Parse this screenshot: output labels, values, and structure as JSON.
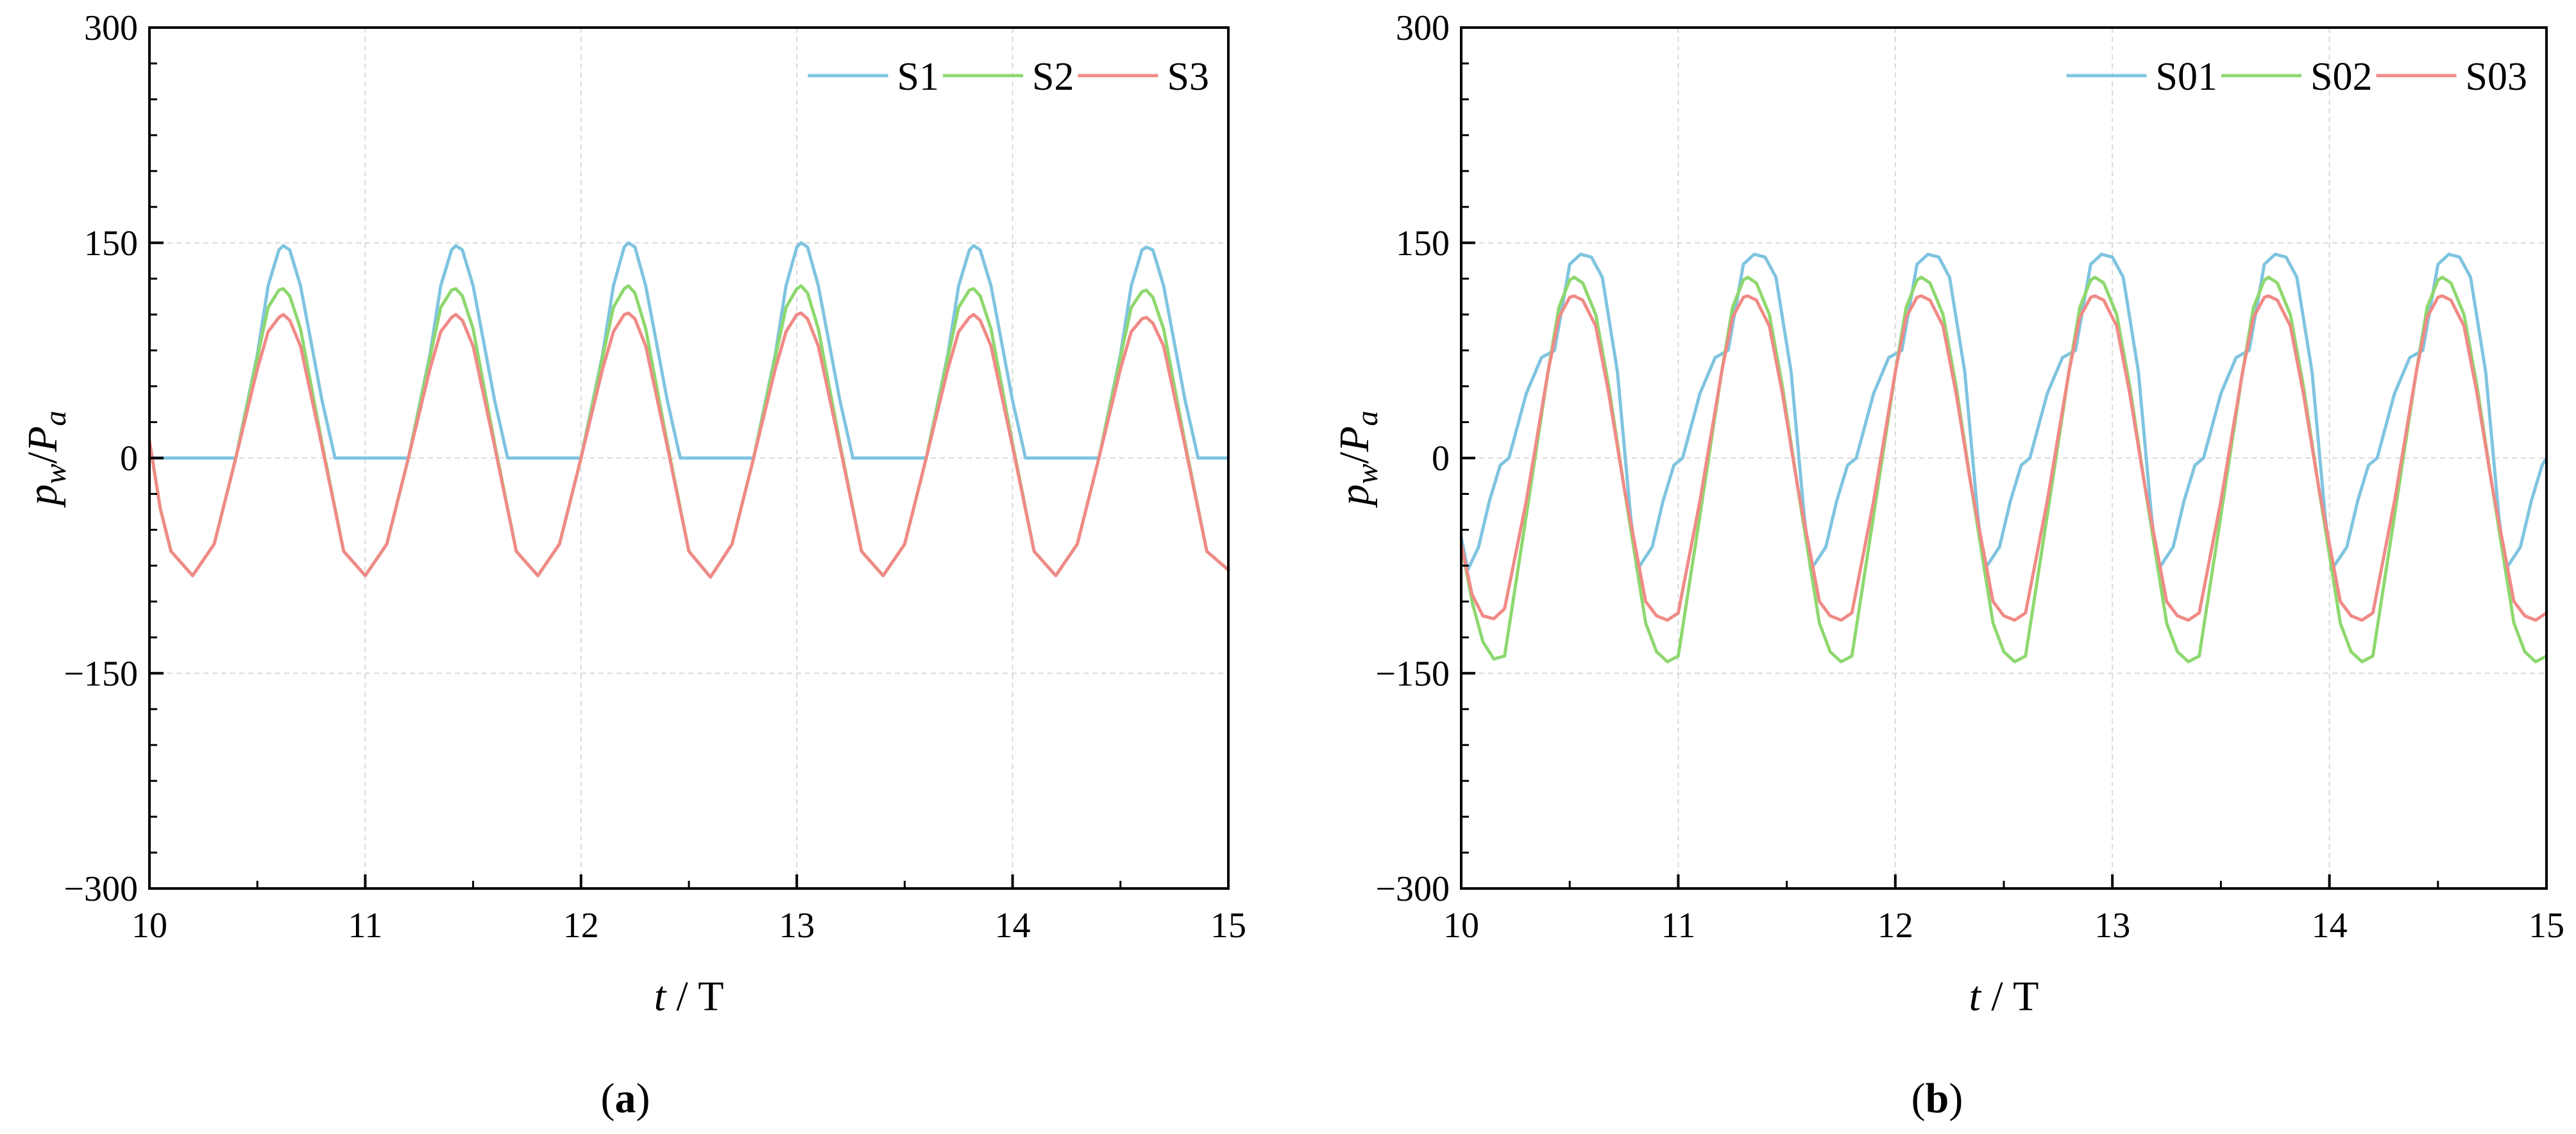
{
  "figure": {
    "panels": [
      "(a)",
      "(b)"
    ]
  },
  "chart_data": [
    {
      "type": "line",
      "panel_label": {
        "open": "(",
        "letter": "a",
        "close": ")"
      },
      "xlabel": {
        "var": "t",
        "sep": " / ",
        "unit": "T"
      },
      "ylabel": {
        "p": "p",
        "p_sub": "w",
        "slash": "/",
        "P": "P",
        "P_sub": "a"
      },
      "xlim": [
        10,
        15
      ],
      "ylim": [
        -300,
        300
      ],
      "xticks": [
        "10",
        "11",
        "12",
        "13",
        "14",
        "15"
      ],
      "yticks": [
        {
          "value": 300,
          "label": "300"
        },
        {
          "value": 150,
          "label": "150"
        },
        {
          "value": 0,
          "label": "0"
        },
        {
          "value": -150,
          "label": "−150"
        },
        {
          "value": -300,
          "label": "−300"
        }
      ],
      "grid": true,
      "legend_position": "top-right",
      "period": 0.8,
      "series": [
        {
          "name": "S1",
          "color": "#7fc4e0",
          "x": [
            10.0,
            10.1,
            10.2,
            10.3,
            10.4,
            10.5,
            10.55,
            10.6,
            10.62,
            10.65,
            10.7,
            10.8,
            10.86,
            10.95,
            11.0,
            11.1,
            11.2,
            11.3,
            11.35,
            11.4,
            11.42,
            11.45,
            11.5,
            11.6,
            11.66,
            11.75,
            11.8,
            11.9,
            12.0,
            12.1,
            12.15,
            12.2,
            12.22,
            12.25,
            12.3,
            12.4,
            12.46,
            12.55,
            12.6,
            12.7,
            12.8,
            12.9,
            12.95,
            13.0,
            13.02,
            13.05,
            13.1,
            13.2,
            13.26,
            13.35,
            13.4,
            13.5,
            13.6,
            13.7,
            13.75,
            13.8,
            13.82,
            13.85,
            13.9,
            14.0,
            14.06,
            14.15,
            14.2,
            14.3,
            14.4,
            14.5,
            14.55,
            14.6,
            14.62,
            14.65,
            14.7,
            14.8,
            14.86,
            14.95,
            15.0
          ],
          "y": [
            0,
            0,
            0,
            0,
            0,
            72,
            120,
            145,
            148,
            145,
            120,
            40,
            0,
            0,
            0,
            0,
            0,
            72,
            120,
            145,
            148,
            145,
            120,
            40,
            0,
            0,
            0,
            0,
            0,
            72,
            120,
            147,
            150,
            147,
            120,
            40,
            0,
            0,
            0,
            0,
            0,
            72,
            120,
            147,
            150,
            147,
            120,
            40,
            0,
            0,
            0,
            0,
            0,
            72,
            120,
            145,
            148,
            145,
            120,
            40,
            0,
            0,
            0,
            0,
            0,
            72,
            120,
            145,
            147,
            145,
            120,
            40,
            0,
            0,
            0
          ]
        },
        {
          "name": "S2",
          "color": "#8ed86f",
          "x": [
            10.0,
            10.05,
            10.1,
            10.2,
            10.3,
            10.4,
            10.5,
            10.55,
            10.6,
            10.62,
            10.65,
            10.7,
            10.8,
            10.9,
            11.0,
            11.1,
            11.2,
            11.3,
            11.35,
            11.4,
            11.42,
            11.45,
            11.5,
            11.6,
            11.7,
            11.8,
            11.9,
            12.0,
            12.1,
            12.15,
            12.2,
            12.22,
            12.25,
            12.3,
            12.4,
            12.5,
            12.6,
            12.7,
            12.8,
            12.9,
            12.95,
            13.0,
            13.02,
            13.05,
            13.1,
            13.2,
            13.3,
            13.4,
            13.5,
            13.6,
            13.7,
            13.75,
            13.8,
            13.82,
            13.85,
            13.9,
            14.0,
            14.1,
            14.2,
            14.3,
            14.4,
            14.5,
            14.55,
            14.6,
            14.62,
            14.65,
            14.7,
            14.8,
            14.9,
            15.0
          ],
          "y": [
            12,
            -35,
            -65,
            -82,
            -60,
            0,
            70,
            105,
            117,
            118,
            113,
            90,
            10,
            -65,
            -82,
            -60,
            0,
            70,
            105,
            117,
            118,
            113,
            90,
            10,
            -65,
            -82,
            -60,
            0,
            70,
            105,
            118,
            120,
            115,
            90,
            10,
            -65,
            -83,
            -60,
            0,
            70,
            105,
            118,
            120,
            115,
            90,
            10,
            -65,
            -82,
            -60,
            0,
            70,
            105,
            117,
            118,
            113,
            90,
            10,
            -65,
            -82,
            -60,
            0,
            70,
            105,
            116,
            117,
            112,
            90,
            10,
            -65,
            -78
          ]
        },
        {
          "name": "S3",
          "color": "#f08a86",
          "x": [
            10.0,
            10.05,
            10.1,
            10.2,
            10.3,
            10.4,
            10.5,
            10.55,
            10.6,
            10.62,
            10.65,
            10.7,
            10.8,
            10.9,
            11.0,
            11.1,
            11.2,
            11.3,
            11.35,
            11.4,
            11.42,
            11.45,
            11.5,
            11.6,
            11.7,
            11.8,
            11.9,
            12.0,
            12.1,
            12.15,
            12.2,
            12.22,
            12.25,
            12.3,
            12.4,
            12.5,
            12.6,
            12.7,
            12.8,
            12.9,
            12.95,
            13.0,
            13.02,
            13.05,
            13.1,
            13.2,
            13.3,
            13.4,
            13.5,
            13.6,
            13.7,
            13.75,
            13.8,
            13.82,
            13.85,
            13.9,
            14.0,
            14.1,
            14.2,
            14.3,
            14.4,
            14.5,
            14.55,
            14.6,
            14.62,
            14.65,
            14.7,
            14.8,
            14.9,
            15.0
          ],
          "y": [
            12,
            -35,
            -65,
            -82,
            -60,
            0,
            62,
            88,
            98,
            100,
            96,
            78,
            8,
            -65,
            -82,
            -60,
            0,
            62,
            88,
            98,
            100,
            96,
            78,
            8,
            -65,
            -82,
            -60,
            0,
            62,
            88,
            100,
            101,
            97,
            78,
            8,
            -65,
            -83,
            -60,
            0,
            62,
            88,
            100,
            101,
            97,
            78,
            8,
            -65,
            -82,
            -60,
            0,
            62,
            88,
            98,
            100,
            96,
            78,
            8,
            -65,
            -82,
            -60,
            0,
            62,
            88,
            97,
            98,
            94,
            78,
            8,
            -65,
            -78
          ]
        }
      ]
    },
    {
      "type": "line",
      "panel_label": {
        "open": "(",
        "letter": "b",
        "close": ")"
      },
      "xlabel": {
        "var": "t",
        "sep": " / ",
        "unit": "T"
      },
      "ylabel": {
        "p": "p",
        "p_sub": "w",
        "slash": "/",
        "P": "P",
        "P_sub": "a"
      },
      "xlim": [
        10,
        15
      ],
      "ylim": [
        -300,
        300
      ],
      "xticks": [
        "10",
        "11",
        "12",
        "13",
        "14",
        "15"
      ],
      "yticks": [
        {
          "value": 300,
          "label": "300"
        },
        {
          "value": 150,
          "label": "150"
        },
        {
          "value": 0,
          "label": "0"
        },
        {
          "value": -150,
          "label": "−150"
        },
        {
          "value": -300,
          "label": "−300"
        }
      ],
      "grid": true,
      "legend_position": "top-right",
      "period": 0.8,
      "series": [
        {
          "name": "S01",
          "color": "#7fc4e0",
          "x": [
            10.0,
            10.03,
            10.08,
            10.13,
            10.18,
            10.22,
            10.3,
            10.37,
            10.43,
            10.5,
            10.55,
            10.6,
            10.65,
            10.72,
            10.78,
            10.81,
            10.88,
            10.93,
            10.98,
            11.02,
            11.1,
            11.17,
            11.23,
            11.3,
            11.35,
            11.4,
            11.45,
            11.52,
            11.58,
            11.61,
            11.68,
            11.73,
            11.78,
            11.82,
            11.9,
            11.97,
            12.03,
            12.1,
            12.15,
            12.2,
            12.25,
            12.32,
            12.38,
            12.41,
            12.48,
            12.53,
            12.58,
            12.62,
            12.7,
            12.77,
            12.83,
            12.9,
            12.95,
            13.0,
            13.05,
            13.12,
            13.18,
            13.21,
            13.28,
            13.33,
            13.38,
            13.42,
            13.5,
            13.57,
            13.63,
            13.7,
            13.75,
            13.8,
            13.85,
            13.92,
            13.98,
            14.01,
            14.08,
            14.13,
            14.18,
            14.22,
            14.3,
            14.37,
            14.43,
            14.5,
            14.55,
            14.6,
            14.65,
            14.72,
            14.78,
            14.81,
            14.88,
            14.93,
            14.98,
            15.0
          ],
          "y": [
            -55,
            -78,
            -62,
            -30,
            -5,
            0,
            45,
            70,
            75,
            135,
            142,
            140,
            126,
            60,
            -40,
            -78,
            -62,
            -30,
            -5,
            0,
            45,
            70,
            75,
            135,
            142,
            140,
            126,
            60,
            -40,
            -78,
            -62,
            -30,
            -5,
            0,
            45,
            70,
            75,
            135,
            142,
            140,
            126,
            60,
            -40,
            -78,
            -62,
            -30,
            -5,
            0,
            45,
            70,
            75,
            135,
            142,
            140,
            126,
            60,
            -40,
            -78,
            -62,
            -30,
            -5,
            0,
            45,
            70,
            75,
            135,
            142,
            140,
            126,
            60,
            -40,
            -78,
            -62,
            -30,
            -5,
            0,
            45,
            70,
            75,
            135,
            142,
            140,
            126,
            60,
            -40,
            -78,
            -62,
            -30,
            -5,
            0
          ]
        },
        {
          "name": "S02",
          "color": "#8ed86f",
          "x": [
            10.0,
            10.05,
            10.1,
            10.15,
            10.2,
            10.3,
            10.4,
            10.45,
            10.5,
            10.52,
            10.56,
            10.62,
            10.68,
            10.75,
            10.85,
            10.9,
            10.95,
            11.0,
            11.1,
            11.2,
            11.25,
            11.3,
            11.32,
            11.36,
            11.42,
            11.48,
            11.55,
            11.65,
            11.7,
            11.75,
            11.8,
            11.9,
            12.0,
            12.05,
            12.1,
            12.12,
            12.16,
            12.22,
            12.28,
            12.35,
            12.45,
            12.5,
            12.55,
            12.6,
            12.7,
            12.8,
            12.85,
            12.9,
            12.92,
            12.96,
            13.02,
            13.08,
            13.15,
            13.25,
            13.3,
            13.35,
            13.4,
            13.5,
            13.6,
            13.65,
            13.7,
            13.72,
            13.76,
            13.82,
            13.88,
            13.95,
            14.05,
            14.1,
            14.15,
            14.2,
            14.3,
            14.4,
            14.45,
            14.5,
            14.52,
            14.56,
            14.62,
            14.68,
            14.75,
            14.85,
            14.9,
            14.95,
            15.0
          ],
          "y": [
            -60,
            -100,
            -128,
            -140,
            -138,
            -40,
            60,
            105,
            124,
            126,
            122,
            100,
            50,
            -20,
            -115,
            -135,
            -142,
            -138,
            -40,
            60,
            105,
            124,
            126,
            122,
            100,
            50,
            -20,
            -115,
            -135,
            -142,
            -138,
            -40,
            60,
            105,
            124,
            126,
            122,
            100,
            50,
            -20,
            -115,
            -135,
            -142,
            -138,
            -40,
            60,
            105,
            124,
            126,
            122,
            100,
            50,
            -20,
            -115,
            -135,
            -142,
            -138,
            -40,
            60,
            105,
            124,
            126,
            122,
            100,
            50,
            -20,
            -115,
            -135,
            -142,
            -138,
            -40,
            60,
            105,
            124,
            126,
            122,
            100,
            50,
            -20,
            -115,
            -135,
            -142,
            -138
          ]
        },
        {
          "name": "S03",
          "color": "#f08a86",
          "x": [
            10.0,
            10.05,
            10.1,
            10.15,
            10.2,
            10.3,
            10.4,
            10.45,
            10.5,
            10.52,
            10.56,
            10.62,
            10.68,
            10.75,
            10.85,
            10.9,
            10.95,
            11.0,
            11.1,
            11.2,
            11.25,
            11.3,
            11.32,
            11.36,
            11.42,
            11.48,
            11.55,
            11.65,
            11.7,
            11.75,
            11.8,
            11.9,
            12.0,
            12.05,
            12.1,
            12.12,
            12.16,
            12.22,
            12.28,
            12.35,
            12.45,
            12.5,
            12.55,
            12.6,
            12.7,
            12.8,
            12.85,
            12.9,
            12.92,
            12.96,
            13.02,
            13.08,
            13.15,
            13.25,
            13.3,
            13.35,
            13.4,
            13.5,
            13.6,
            13.65,
            13.7,
            13.72,
            13.76,
            13.82,
            13.88,
            13.95,
            14.05,
            14.1,
            14.15,
            14.2,
            14.3,
            14.4,
            14.45,
            14.5,
            14.52,
            14.56,
            14.62,
            14.68,
            14.75,
            14.85,
            14.9,
            14.95,
            15.0
          ],
          "y": [
            -60,
            -95,
            -110,
            -112,
            -105,
            -30,
            60,
            98,
            112,
            113,
            110,
            92,
            45,
            -20,
            -100,
            -110,
            -113,
            -108,
            -30,
            60,
            98,
            112,
            113,
            110,
            92,
            45,
            -20,
            -100,
            -110,
            -113,
            -108,
            -30,
            60,
            98,
            112,
            113,
            110,
            92,
            45,
            -20,
            -100,
            -110,
            -113,
            -108,
            -30,
            60,
            98,
            112,
            113,
            110,
            92,
            45,
            -20,
            -100,
            -110,
            -113,
            -108,
            -30,
            60,
            98,
            112,
            113,
            110,
            92,
            45,
            -20,
            -100,
            -110,
            -113,
            -108,
            -30,
            60,
            98,
            112,
            113,
            110,
            92,
            45,
            -20,
            -100,
            -110,
            -113,
            -108
          ]
        }
      ]
    }
  ]
}
